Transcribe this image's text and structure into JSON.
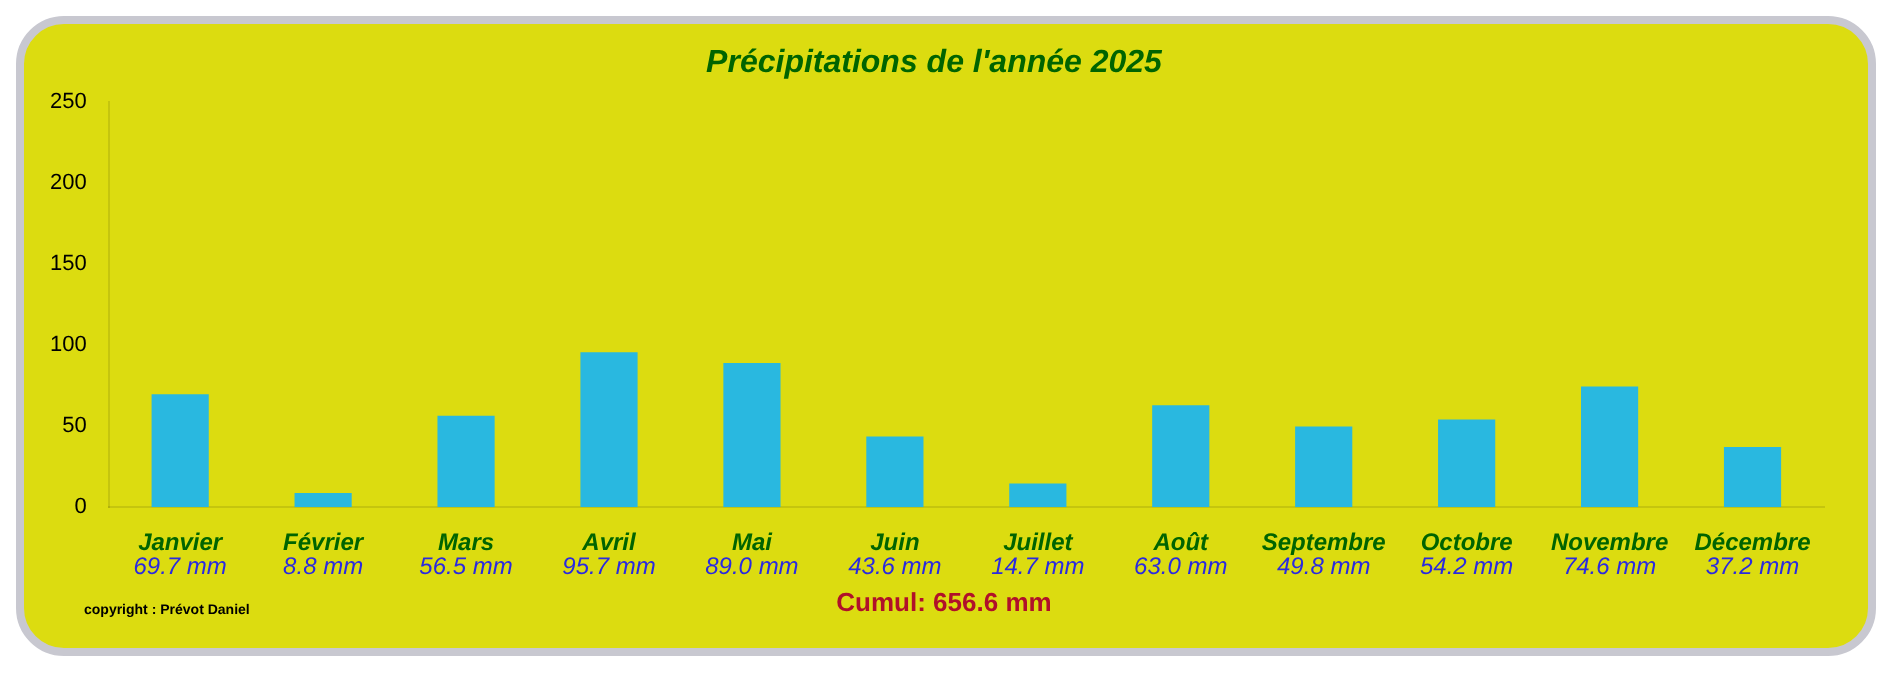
{
  "chart_data": {
    "type": "bar",
    "title": "Précipitations de l'année 2025",
    "categories": [
      "Janvier",
      "Février",
      "Mars",
      "Avril",
      "Mai",
      "Juin",
      "Juillet",
      "Août",
      "Septembre",
      "Octobre",
      "Novembre",
      "Décembre"
    ],
    "values": [
      69.7,
      8.8,
      56.5,
      95.7,
      89.0,
      43.6,
      14.7,
      63.0,
      49.8,
      54.2,
      74.6,
      37.2
    ],
    "value_labels": [
      "69.7 mm",
      "8.8 mm",
      "56.5 mm",
      "95.7 mm",
      "89.0 mm",
      "43.6 mm",
      "14.7 mm",
      "63.0 mm",
      "49.8 mm",
      "54.2 mm",
      "74.6 mm",
      "37.2 mm"
    ],
    "color": "#29b8e0",
    "ylim": [
      0,
      250
    ],
    "yticks": [
      0,
      50,
      100,
      150,
      200,
      250
    ],
    "grid": false,
    "annotations": [
      "Cumul: 656.6 mm",
      "copyright : Prévot Daniel"
    ]
  }
}
